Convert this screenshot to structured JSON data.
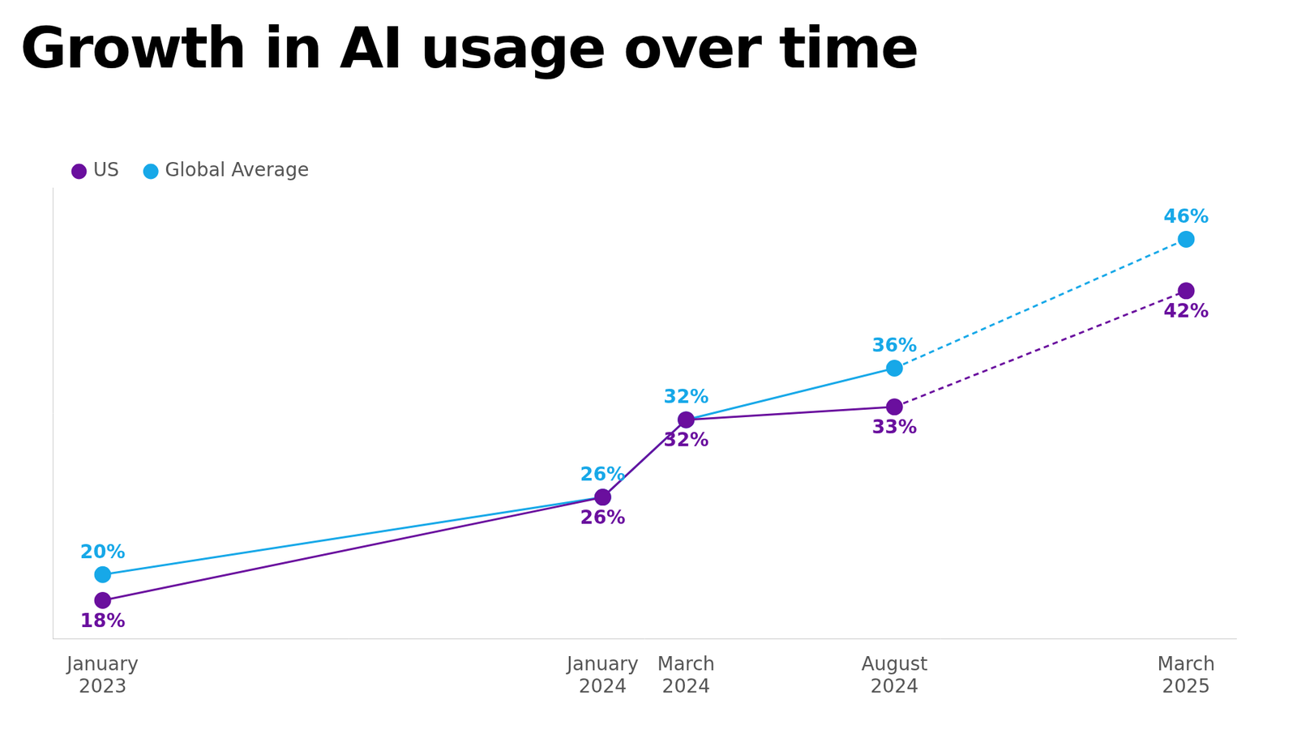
{
  "chart_data": {
    "type": "line",
    "title": "Growth in AI usage over time",
    "x": [
      "January 2023",
      "January 2024",
      "March 2024",
      "August 2024",
      "March 2025"
    ],
    "series": [
      {
        "name": "US",
        "color": "#6a0f9e",
        "values": [
          18,
          26,
          32,
          33,
          42
        ],
        "value_labels": [
          "18%",
          "26%",
          "32%",
          "33%",
          "42%"
        ]
      },
      {
        "name": "Global Average",
        "color": "#17a8e8",
        "values": [
          20,
          26,
          32,
          36,
          46
        ],
        "value_labels": [
          "20%",
          "26%",
          "32%",
          "36%",
          "46%"
        ]
      }
    ],
    "ylim": [
      15,
      50
    ],
    "grid": false,
    "legend": "top-left",
    "data_labels": true,
    "tick_labels": "x",
    "marker": "circle"
  }
}
